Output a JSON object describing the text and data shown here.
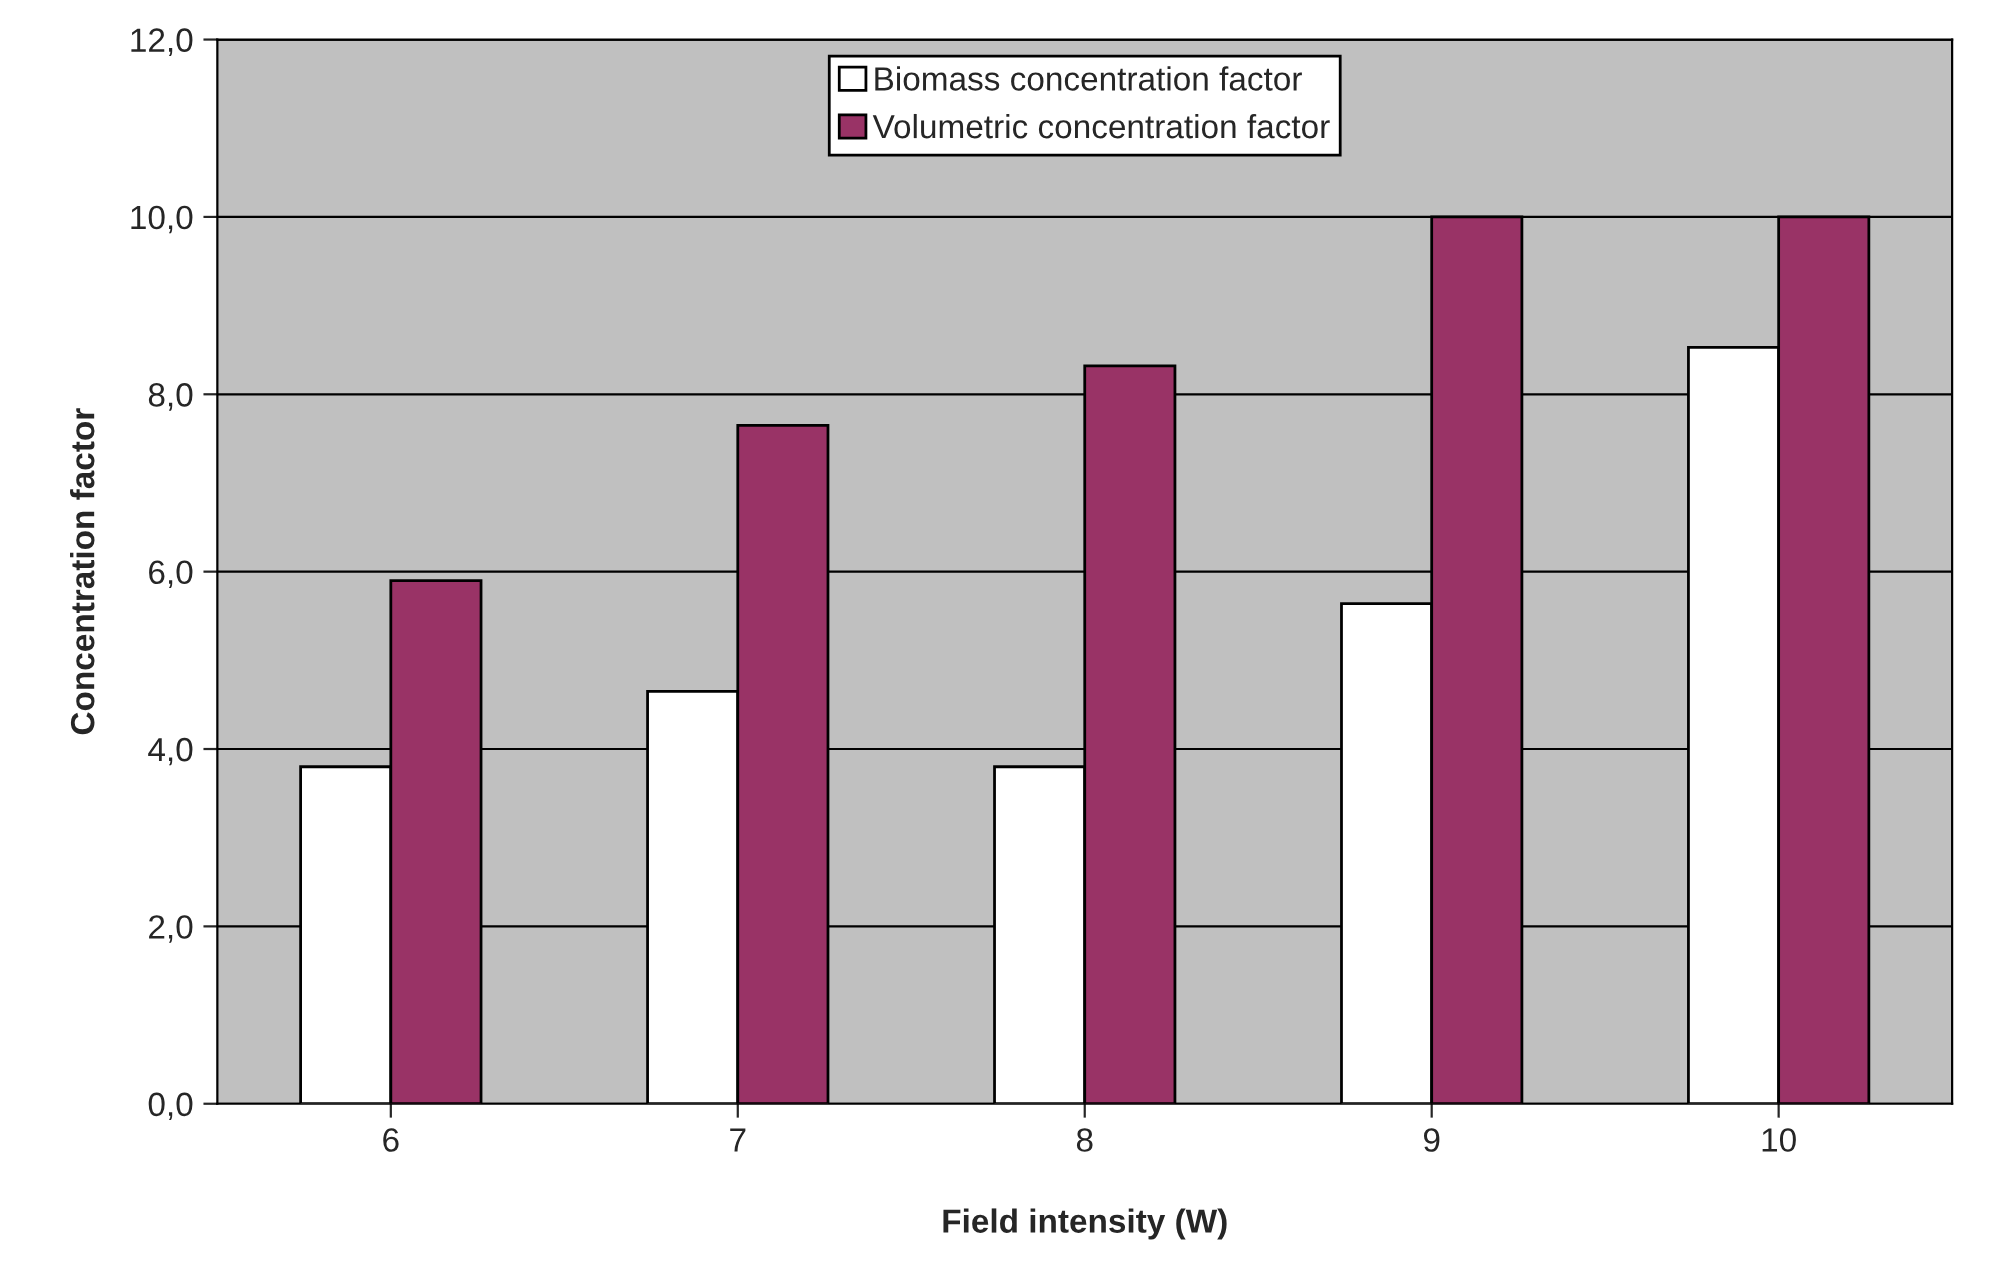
{
  "chart_data": {
    "type": "bar",
    "xlabel": "Field intensity (W)",
    "ylabel": "Concentration factor",
    "categories": [
      "6",
      "7",
      "8",
      "9",
      "10"
    ],
    "series": [
      {
        "name": "Biomass concentration factor",
        "color": "#ffffff",
        "values": [
          3.8,
          4.65,
          3.8,
          5.64,
          8.53
        ]
      },
      {
        "name": "Volumetric concentration factor",
        "color": "#993366",
        "values": [
          5.9,
          7.65,
          8.32,
          10.0,
          10.0
        ]
      }
    ],
    "ylim": [
      0,
      12
    ],
    "yticks": [
      {
        "value": 0,
        "label": "0,0"
      },
      {
        "value": 2,
        "label": "2,0"
      },
      {
        "value": 4,
        "label": "4,0"
      },
      {
        "value": 6,
        "label": "6,0"
      },
      {
        "value": 8,
        "label": "8,0"
      },
      {
        "value": 10,
        "label": "10,0"
      },
      {
        "value": 12,
        "label": "12,0"
      }
    ],
    "grid": "y",
    "legend": "top"
  }
}
